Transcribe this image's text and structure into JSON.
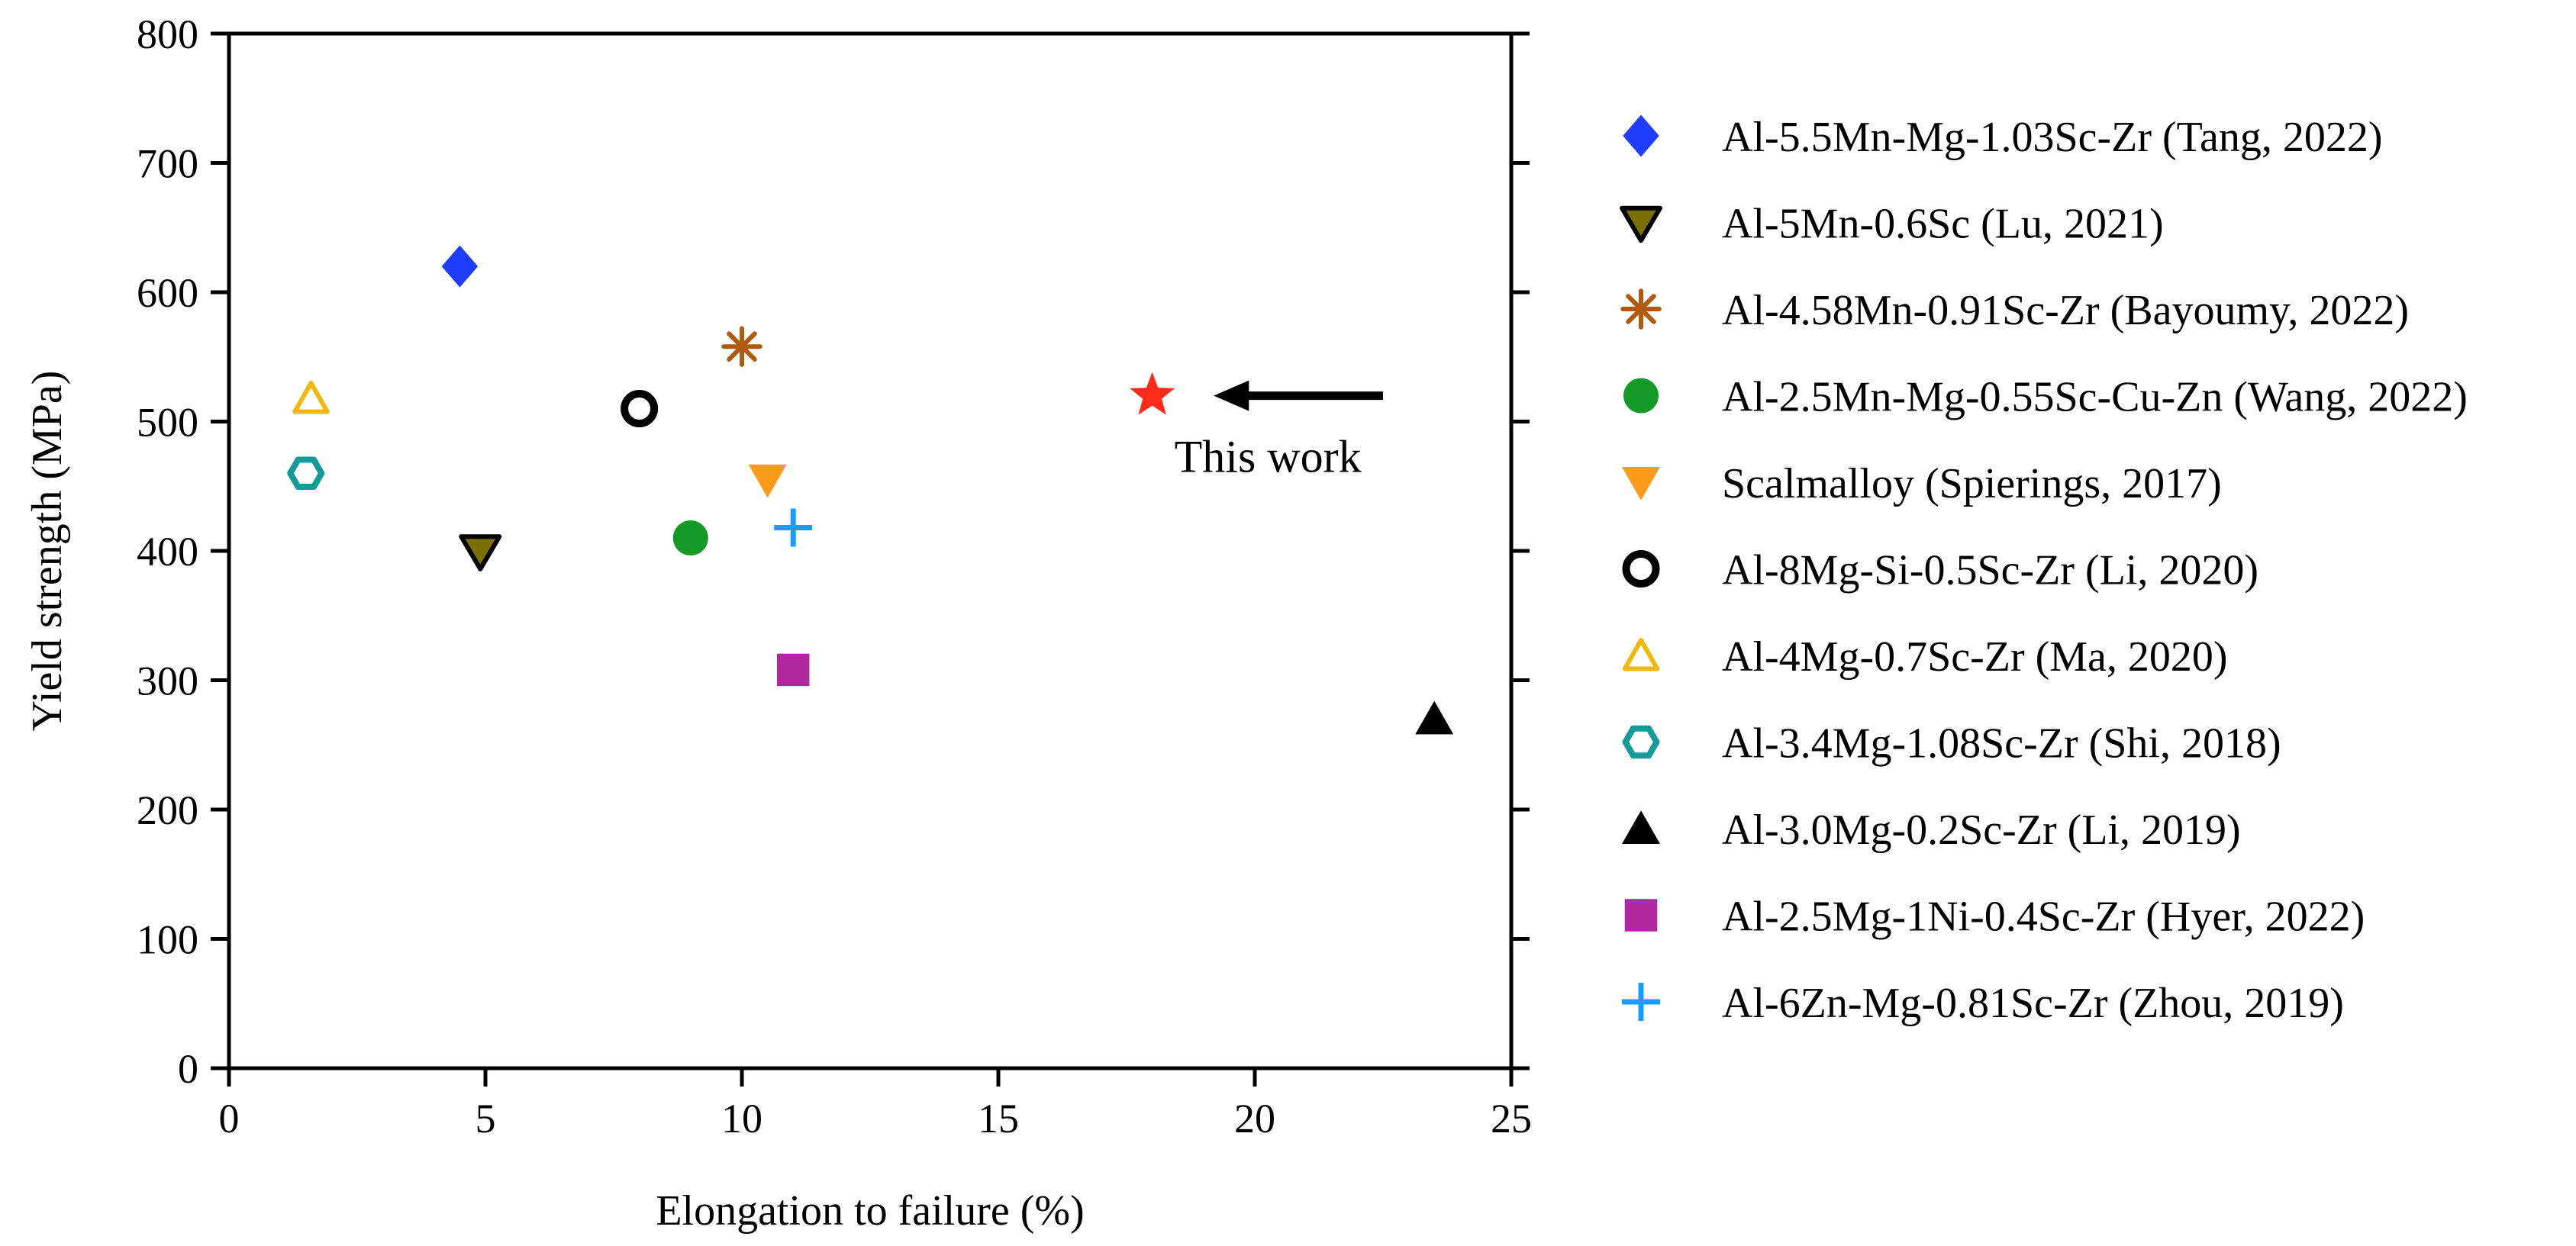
{
  "chart_data": {
    "type": "scatter",
    "xlabel": "Elongation to failure (%)",
    "ylabel": "Yield strength (MPa)",
    "xlim": [
      0,
      25
    ],
    "ylim": [
      0,
      800
    ],
    "xticks": [
      "0",
      "5",
      "10",
      "15",
      "20",
      "25"
    ],
    "yticks": [
      "0",
      "100",
      "200",
      "300",
      "400",
      "500",
      "600",
      "700",
      "800"
    ],
    "grid": false,
    "legend_position": "right",
    "series": [
      {
        "name": "Al-5.5Mn-Mg-1.03Sc-Zr (Tang, 2022)",
        "marker": "diamond-filled",
        "color": "#1f3cff",
        "x": 4.5,
        "y": 620
      },
      {
        "name": "Al-5Mn-0.6Sc (Lu, 2021)",
        "marker": "triangle-down-olive",
        "color": "#7a7000",
        "x": 4.9,
        "y": 400
      },
      {
        "name": "Al-4.58Mn-0.91Sc-Zr (Bayoumy, 2022)",
        "marker": "asterisk",
        "color": "#b05a10",
        "x": 10.0,
        "y": 558
      },
      {
        "name": "Al-2.5Mn-Mg-0.55Sc-Cu-Zn (Wang, 2022)",
        "marker": "circle-filled",
        "color": "#139a26",
        "x": 9.0,
        "y": 410
      },
      {
        "name": "Scalmalloy (Spierings, 2017)",
        "marker": "triangle-down-filled",
        "color": "#ff9a1a",
        "x": 10.5,
        "y": 455
      },
      {
        "name": "Al-8Mg-Si-0.5Sc-Zr (Li, 2020)",
        "marker": "circle-open",
        "color": "#000000",
        "x": 8.0,
        "y": 510
      },
      {
        "name": "Al-4Mg-0.7Sc-Zr (Ma, 2020)",
        "marker": "triangle-up-open",
        "color": "#f2b90c",
        "x": 1.6,
        "y": 518
      },
      {
        "name": "Al-3.4Mg-1.08Sc-Zr (Shi, 2018)",
        "marker": "hexagon-open",
        "color": "#159a9a",
        "x": 1.5,
        "y": 460
      },
      {
        "name": "Al-3.0Mg-0.2Sc-Zr (Li, 2019)",
        "marker": "triangle-up-filled",
        "color": "#000000",
        "x": 23.5,
        "y": 270
      },
      {
        "name": "Al-2.5Mg-1Ni-0.4Sc-Zr (Hyer, 2022)",
        "marker": "square-filled",
        "color": "#b0279e",
        "x": 11.0,
        "y": 308
      },
      {
        "name": "Al-6Zn-Mg-0.81Sc-Zr (Zhou, 2019)",
        "marker": "plus",
        "color": "#1a9cff",
        "x": 11.0,
        "y": 418
      },
      {
        "name": "This work",
        "marker": "star",
        "color": "#ff2a1a",
        "x": 18.0,
        "y": 520,
        "in_legend": false
      }
    ],
    "annotations": [
      {
        "text": "This work",
        "arrow_from": [
          22.5,
          520
        ],
        "arrow_to": [
          19.2,
          520
        ]
      }
    ]
  }
}
